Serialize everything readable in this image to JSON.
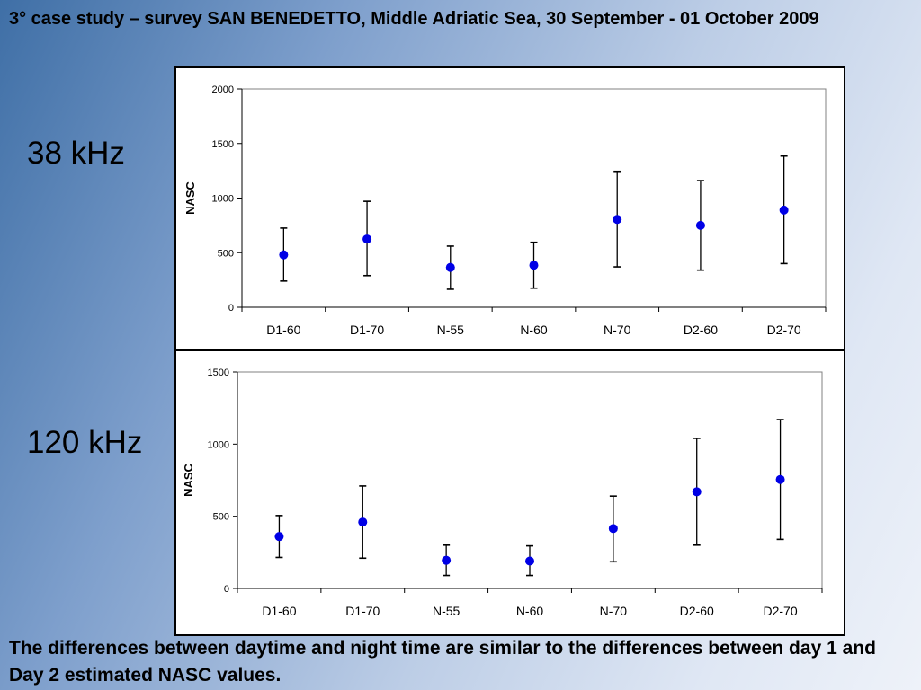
{
  "slide": {
    "title": "3° case study – survey SAN BENEDETTO, Middle Adriatic Sea, 30 September - 01 October 2009",
    "footer": "The differences between daytime and night time are similar to the differences between day 1 and Day 2 estimated NASC values."
  },
  "colors": {
    "point": "#0000e6",
    "errorbar": "#000000"
  },
  "chart_data": [
    {
      "type": "scatter",
      "side_label": "38 kHz",
      "title": "",
      "xlabel": "",
      "ylabel": "NASC",
      "ylim": [
        0,
        2000
      ],
      "yticks": [
        0,
        500,
        1000,
        1500,
        2000
      ],
      "grid": false,
      "categories": [
        "D1-60",
        "D1-70",
        "N-55",
        "N-60",
        "N-70",
        "D2-60",
        "D2-70"
      ],
      "values": [
        480,
        625,
        365,
        385,
        805,
        750,
        890
      ],
      "error_low": [
        240,
        290,
        165,
        175,
        370,
        340,
        400
      ],
      "error_high": [
        725,
        970,
        560,
        595,
        1245,
        1160,
        1385
      ]
    },
    {
      "type": "scatter",
      "side_label": "120 kHz",
      "title": "",
      "xlabel": "",
      "ylabel": "NASC",
      "ylim": [
        0,
        1500
      ],
      "yticks": [
        0,
        500,
        1000,
        1500
      ],
      "grid": false,
      "categories": [
        "D1-60",
        "D1-70",
        "N-55",
        "N-60",
        "N-70",
        "D2-60",
        "D2-70"
      ],
      "values": [
        360,
        460,
        195,
        190,
        415,
        670,
        755
      ],
      "error_low": [
        215,
        210,
        90,
        90,
        185,
        300,
        340
      ],
      "error_high": [
        505,
        710,
        300,
        295,
        640,
        1040,
        1170
      ]
    }
  ]
}
